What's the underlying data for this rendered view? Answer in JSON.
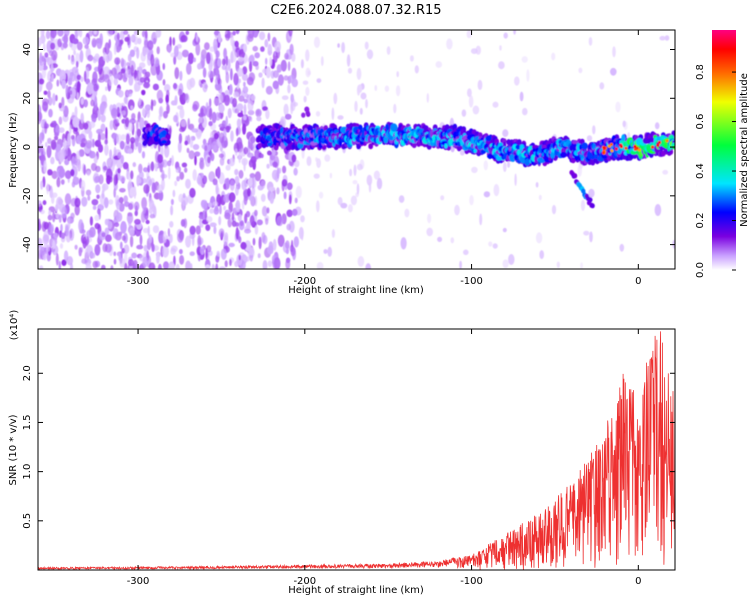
{
  "title": "C2E6.2024.088.07.32.R15",
  "chart_data": [
    {
      "type": "heatmap",
      "xlabel": "Height of straight line (km)",
      "ylabel": "Frequency (Hz)",
      "xlim": [
        -360,
        22
      ],
      "ylim": [
        -50,
        48
      ],
      "xticks": [
        -300,
        -200,
        -100,
        0
      ],
      "yticks": [
        -40,
        -20,
        0,
        20,
        40
      ],
      "colorbar": {
        "label": "Normalized spectral amplitude",
        "range": [
          0,
          0.97
        ],
        "ticks": [
          0.0,
          0.2,
          0.4,
          0.6,
          0.8
        ],
        "colormap": [
          "#ffffff",
          "#c9a0ff",
          "#7a00e0",
          "#0000ff",
          "#00e5ff",
          "#00ff3c",
          "#f0ff00",
          "#ff6a00",
          "#ff0000",
          "#ff0080"
        ]
      },
      "signal_ridge": [
        {
          "x": -290,
          "y": 5
        },
        {
          "x": -200,
          "y": 4
        },
        {
          "x": -150,
          "y": 5
        },
        {
          "x": -110,
          "y": 4
        },
        {
          "x": -80,
          "y": -2
        },
        {
          "x": -60,
          "y": -3
        },
        {
          "x": -45,
          "y": 0
        },
        {
          "x": -30,
          "y": -3
        },
        {
          "x": -15,
          "y": 0
        },
        {
          "x": 0,
          "y": 0
        },
        {
          "x": 20,
          "y": 2
        }
      ],
      "signal_branch": [
        {
          "x": -40,
          "y": -10
        },
        {
          "x": -33,
          "y": -19
        },
        {
          "x": -27,
          "y": -24
        }
      ]
    },
    {
      "type": "line",
      "xlabel": "Height of straight line (km)",
      "ylabel": "SNR (10 * v/v)",
      "y_multiplier": "(x10⁴)",
      "xlim": [
        -360,
        22
      ],
      "ylim": [
        0,
        2.45
      ],
      "xticks": [
        -300,
        -200,
        -100,
        0
      ],
      "yticks": [
        0.5,
        1.0,
        1.5,
        2.0
      ],
      "color": "#ee3030",
      "envelope": [
        {
          "x": -360,
          "y": 0.02
        },
        {
          "x": -250,
          "y": 0.03
        },
        {
          "x": -200,
          "y": 0.04
        },
        {
          "x": -150,
          "y": 0.05
        },
        {
          "x": -120,
          "y": 0.07
        },
        {
          "x": -100,
          "y": 0.15
        },
        {
          "x": -80,
          "y": 0.35
        },
        {
          "x": -60,
          "y": 0.55
        },
        {
          "x": -40,
          "y": 0.85
        },
        {
          "x": -20,
          "y": 1.35
        },
        {
          "x": -10,
          "y": 1.95
        },
        {
          "x": 0,
          "y": 1.7
        },
        {
          "x": 11,
          "y": 2.45
        },
        {
          "x": 22,
          "y": 1.8
        }
      ]
    }
  ]
}
